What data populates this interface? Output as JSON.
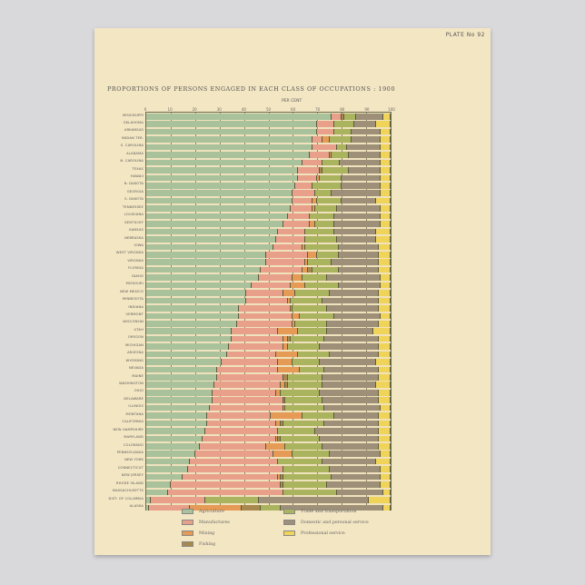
{
  "plate": "PLATE No 92",
  "title": "PROPORTIONS OF PERSONS ENGAGED IN EACH CLASS OF OCCUPATIONS : 1900",
  "axis_label": "PER CENT",
  "ticks": [
    "0",
    "10",
    "20",
    "30",
    "40",
    "50",
    "60",
    "70",
    "80",
    "90",
    "100"
  ],
  "colors": {
    "Agriculture": "#a9c29c",
    "Manufactures": "#e9a08a",
    "Mining": "#e59a55",
    "Fishing": "#a7884f",
    "Trade and transportation": "#aab45e",
    "Domestic and personal service": "#9e9078",
    "Professional service": "#f0d459"
  },
  "legend": [
    {
      "label": "Agriculture",
      "key": "Agriculture"
    },
    {
      "label": "Manufactures",
      "key": "Manufactures"
    },
    {
      "label": "Mining",
      "key": "Mining"
    },
    {
      "label": "Fishing",
      "key": "Fishing"
    },
    {
      "label": "Trade and transportation",
      "key": "Trade and transportation"
    },
    {
      "label": "Domestic and personal service",
      "key": "Domestic and personal service"
    },
    {
      "label": "Professional service",
      "key": "Professional service"
    }
  ],
  "chart_data": {
    "type": "bar",
    "stacked": true,
    "orientation": "horizontal",
    "title": "PROPORTIONS OF PERSONS ENGAGED IN EACH CLASS OF OCCUPATIONS : 1900",
    "xlabel": "PER CENT",
    "ylabel": "",
    "xlim": [
      0,
      100
    ],
    "grid": true,
    "legend_position": "bottom",
    "categories": [
      "MISSISSIPPI",
      "OKLAHOMA",
      "ARKANSAS",
      "INDIAN TER.",
      "S. CAROLINA",
      "ALABAMA",
      "N. CAROLINA",
      "TEXAS",
      "HAWAII",
      "N. DAKOTA",
      "GEORGIA",
      "S. DAKOTA",
      "TENNESSEE",
      "LOUISIANA",
      "KENTUCKY",
      "KANSAS",
      "NEBRASKA",
      "IOWA",
      "WEST VIRGINIA",
      "VIRGINIA",
      "FLORIDA",
      "IDAHO",
      "MISSOURI",
      "NEW MEXICO",
      "MINNESOTA",
      "INDIANA",
      "VERMONT",
      "WISCONSIN",
      "UTAH",
      "OREGON",
      "MICHIGAN",
      "ARIZONA",
      "WYOMING",
      "NEVADA",
      "MAINE",
      "WASHINGTON",
      "OHIO",
      "DELAWARE",
      "ILLINOIS",
      "MONTANA",
      "CALIFORNIA",
      "NEW HAMPSHIRE",
      "MARYLAND",
      "COLORADO",
      "PENNSYLVANIA",
      "NEW YORK",
      "CONNECTICUT",
      "NEW JERSEY",
      "RHODE ISLAND",
      "MASSACHUSETTS",
      "DIST. OF COLUMBIA",
      "ALASKA"
    ],
    "series": [
      {
        "name": "Agriculture",
        "values": [
          76,
          70,
          70,
          68,
          68,
          67,
          64,
          62,
          62,
          61,
          60,
          60,
          59,
          58,
          56,
          54,
          53,
          52,
          49,
          49,
          47,
          46,
          43,
          41,
          41,
          38,
          38,
          37,
          35,
          35,
          34,
          33,
          31,
          29,
          29,
          28,
          27,
          27,
          26,
          25,
          25,
          24,
          23,
          22,
          20,
          18,
          17,
          15,
          10,
          9,
          2,
          1
        ]
      },
      {
        "name": "Manufactures",
        "values": [
          4,
          7,
          7,
          4,
          10,
          8,
          8,
          9,
          8,
          7,
          9,
          8,
          9,
          9,
          11,
          11,
          12,
          12,
          17,
          16,
          17,
          14,
          16,
          15,
          17,
          21,
          22,
          23,
          19,
          21,
          22,
          20,
          23,
          25,
          27,
          27,
          26,
          29,
          30,
          26,
          28,
          30,
          30,
          27,
          32,
          36,
          39,
          39,
          45,
          47,
          22,
          17
        ]
      },
      {
        "name": "Mining",
        "values": [
          0,
          0,
          0,
          3,
          0,
          1,
          0,
          0,
          1,
          0,
          0,
          2,
          1,
          0,
          2,
          0,
          0,
          1,
          4,
          1,
          2,
          4,
          6,
          5,
          1,
          1,
          3,
          1,
          8,
          2,
          2,
          9,
          6,
          9,
          0,
          2,
          2,
          0,
          1,
          13,
          2,
          0,
          1,
          8,
          8,
          0,
          0,
          1,
          0,
          0,
          0,
          21
        ]
      },
      {
        "name": "Fishing",
        "values": [
          1,
          0,
          0,
          0,
          0,
          0,
          0,
          1,
          0,
          0,
          0,
          0,
          0,
          0,
          0,
          0,
          0,
          0,
          0,
          0,
          2,
          0,
          0,
          0,
          0,
          0,
          0,
          0,
          0,
          1,
          0,
          0,
          0,
          0,
          2,
          1,
          0,
          1,
          0,
          0,
          1,
          0,
          1,
          0,
          0,
          0,
          0,
          1,
          1,
          0,
          0,
          8
        ]
      },
      {
        "name": "Trade and transportation",
        "values": [
          5,
          8,
          7,
          9,
          4,
          7,
          7,
          11,
          9,
          12,
          7,
          10,
          9,
          10,
          8,
          12,
          13,
          14,
          9,
          10,
          11,
          10,
          14,
          14,
          13,
          14,
          14,
          13,
          12,
          14,
          13,
          13,
          11,
          10,
          14,
          14,
          16,
          15,
          16,
          13,
          17,
          15,
          16,
          15,
          15,
          18,
          19,
          20,
          18,
          22,
          22,
          8
        ]
      },
      {
        "name": "Domestic and personal service",
        "values": [
          11,
          9,
          12,
          12,
          14,
          13,
          17,
          13,
          16,
          16,
          20,
          14,
          18,
          19,
          19,
          17,
          16,
          16,
          16,
          19,
          16,
          22,
          17,
          20,
          23,
          21,
          19,
          21,
          19,
          22,
          24,
          20,
          23,
          22,
          23,
          22,
          24,
          23,
          23,
          18,
          22,
          26,
          24,
          23,
          21,
          22,
          21,
          20,
          22,
          19,
          45,
          42
        ]
      },
      {
        "name": "Professional service",
        "values": [
          3,
          6,
          4,
          4,
          4,
          4,
          4,
          4,
          4,
          4,
          4,
          6,
          4,
          4,
          4,
          6,
          6,
          5,
          5,
          5,
          5,
          4,
          4,
          5,
          5,
          5,
          4,
          5,
          7,
          5,
          5,
          5,
          6,
          5,
          5,
          6,
          5,
          5,
          4,
          5,
          5,
          5,
          5,
          5,
          4,
          6,
          4,
          4,
          4,
          3,
          9,
          3
        ]
      }
    ]
  }
}
